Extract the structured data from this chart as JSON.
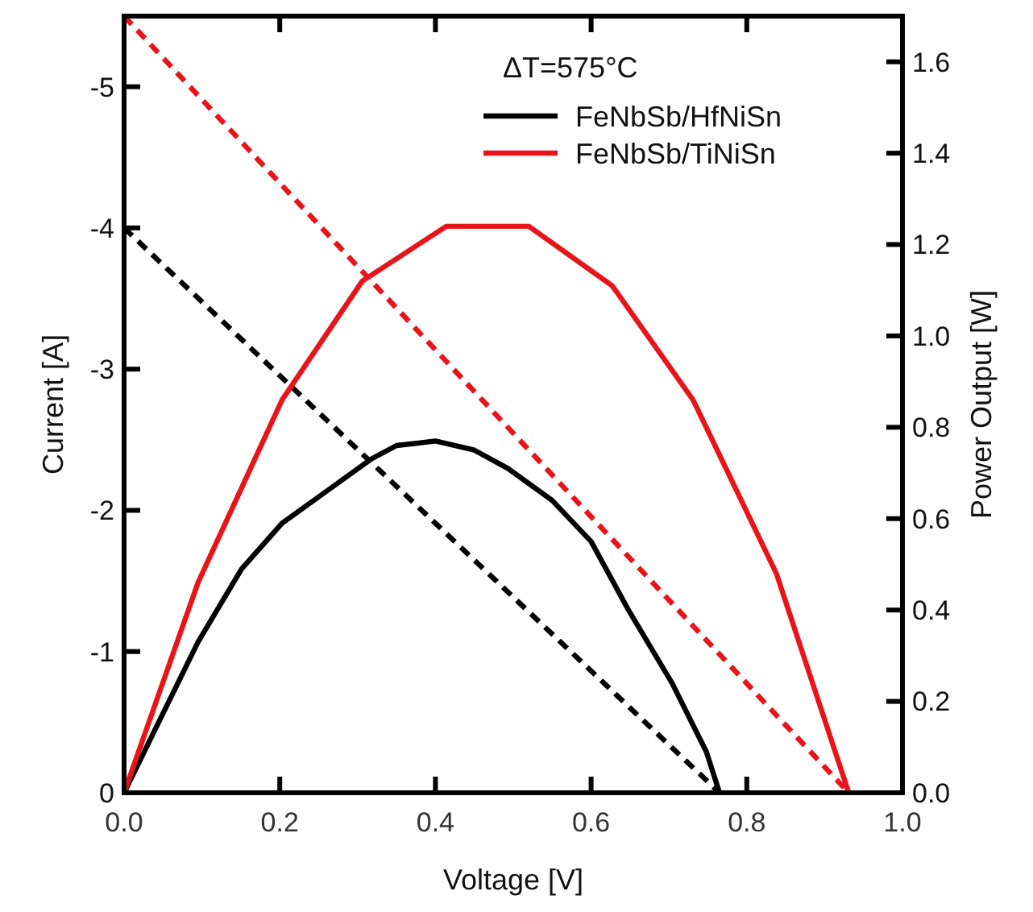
{
  "chart_data": {
    "type": "line",
    "xlabel": "Voltage [V]",
    "ylabel": "Current [A]",
    "y2label": "Power Output [W]",
    "legend_title": "ΔT=575°C",
    "xlim": [
      0,
      1
    ],
    "xticks": [
      {
        "value": 0,
        "label": "0.0"
      },
      {
        "value": 0.2,
        "label": "0.2"
      },
      {
        "value": 0.4,
        "label": "0.4"
      },
      {
        "value": 0.6,
        "label": "0.6"
      },
      {
        "value": 0.8,
        "label": "0.8"
      },
      {
        "value": 1,
        "label": "1.0"
      }
    ],
    "ylim": [
      0,
      -5.5
    ],
    "yticks": [
      0,
      -1,
      -2,
      -3,
      -4,
      -5
    ],
    "y2lim": [
      0,
      1.7
    ],
    "y2ticks": [
      {
        "value": 0,
        "label": "0.0"
      },
      {
        "value": 0.2,
        "label": "0.2"
      },
      {
        "value": 0.4,
        "label": "0.4"
      },
      {
        "value": 0.6,
        "label": "0.6"
      },
      {
        "value": 0.8,
        "label": "0.8"
      },
      {
        "value": 1,
        "label": "1.0"
      },
      {
        "value": 1.2,
        "label": "1.2"
      },
      {
        "value": 1.4,
        "label": "1.4"
      },
      {
        "value": 1.6,
        "label": "1.6"
      }
    ],
    "legend": "top right",
    "grid": false,
    "series": [
      {
        "color": "#000000",
        "axis": "y",
        "line_style": "dashed",
        "x": [
          0,
          0.765
        ],
        "values": [
          -4,
          0
        ]
      },
      {
        "color": "#e8141a",
        "axis": "y",
        "line_style": "dashed",
        "x": [
          0,
          0.931
        ],
        "values": [
          -5.5,
          0
        ]
      },
      {
        "name": "FeNbSb/HfNiSn",
        "color": "#000000",
        "axis": "y2",
        "line_style": "solid",
        "x": [
          0,
          0.095,
          0.151,
          0.203,
          0.26,
          0.317,
          0.35,
          0.4,
          0.45,
          0.493,
          0.55,
          0.6,
          0.648,
          0.704,
          0.748,
          0.765
        ],
        "values": [
          0,
          0.33,
          0.49,
          0.59,
          0.66,
          0.73,
          0.76,
          0.77,
          0.75,
          0.71,
          0.64,
          0.55,
          0.4,
          0.24,
          0.09,
          0
        ]
      },
      {
        "name": "FeNbSb/TiNiSn",
        "color": "#e8141a",
        "axis": "y2",
        "line_style": "solid",
        "x": [
          0,
          0.095,
          0.203,
          0.306,
          0.414,
          0.52,
          0.627,
          0.731,
          0.838,
          0.931
        ],
        "values": [
          0,
          0.46,
          0.86,
          1.12,
          1.24,
          1.24,
          1.11,
          0.86,
          0.48,
          0
        ]
      }
    ]
  }
}
